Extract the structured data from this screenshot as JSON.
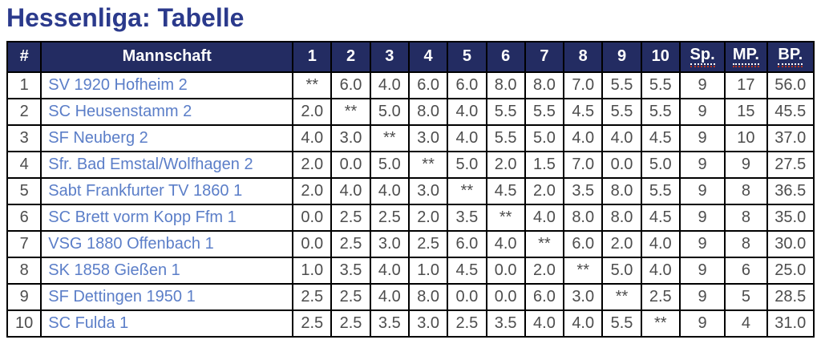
{
  "page": {
    "title": "Hessenliga: Tabelle"
  },
  "colors": {
    "title_text": "#2b3a8c",
    "header_background": "#232c62",
    "header_text": "#ffffff",
    "team_link": "#5b7ec8",
    "cell_text": "#4d4d4d",
    "table_border": "#000000",
    "header_separator_gray": "#bfbfbf",
    "abbr_dotted_white": "#ffffff",
    "abbr_dotted_red": "#b23320"
  },
  "table": {
    "rank_header": "#",
    "team_header": "Mannschaft",
    "round_headers": [
      "1",
      "2",
      "3",
      "4",
      "5",
      "6",
      "7",
      "8",
      "9",
      "10"
    ],
    "sp_header": "Sp.",
    "mp_header": "MP.",
    "bp_header": "BP.",
    "rows": [
      {
        "rank": "1",
        "team": "SV 1920 Hofheim 2",
        "results": [
          "**",
          "6.0",
          "4.0",
          "6.0",
          "6.0",
          "8.0",
          "8.0",
          "7.0",
          "5.5",
          "5.5"
        ],
        "sp": "9",
        "mp": "17",
        "bp": "56.0"
      },
      {
        "rank": "2",
        "team": "SC Heusenstamm 2",
        "results": [
          "2.0",
          "**",
          "5.0",
          "8.0",
          "4.0",
          "5.5",
          "5.5",
          "4.5",
          "5.5",
          "5.5"
        ],
        "sp": "9",
        "mp": "15",
        "bp": "45.5"
      },
      {
        "rank": "3",
        "team": "SF Neuberg 2",
        "results": [
          "4.0",
          "3.0",
          "**",
          "3.0",
          "4.0",
          "5.5",
          "5.0",
          "4.0",
          "4.0",
          "4.5"
        ],
        "sp": "9",
        "mp": "10",
        "bp": "37.0"
      },
      {
        "rank": "4",
        "team": "Sfr. Bad Emstal/Wolfhagen 2",
        "results": [
          "2.0",
          "0.0",
          "5.0",
          "**",
          "5.0",
          "2.0",
          "1.5",
          "7.0",
          "0.0",
          "5.0"
        ],
        "sp": "9",
        "mp": "9",
        "bp": "27.5"
      },
      {
        "rank": "5",
        "team": "Sabt Frankfurter TV 1860 1",
        "results": [
          "2.0",
          "4.0",
          "4.0",
          "3.0",
          "**",
          "4.5",
          "2.0",
          "3.5",
          "8.0",
          "5.5"
        ],
        "sp": "9",
        "mp": "8",
        "bp": "36.5"
      },
      {
        "rank": "6",
        "team": "SC Brett vorm Kopp Ffm 1",
        "results": [
          "0.0",
          "2.5",
          "2.5",
          "2.0",
          "3.5",
          "**",
          "4.0",
          "8.0",
          "8.0",
          "4.5"
        ],
        "sp": "9",
        "mp": "8",
        "bp": "35.0"
      },
      {
        "rank": "7",
        "team": "VSG 1880 Offenbach 1",
        "results": [
          "0.0",
          "2.5",
          "3.0",
          "2.5",
          "6.0",
          "4.0",
          "**",
          "6.0",
          "2.0",
          "4.0"
        ],
        "sp": "9",
        "mp": "8",
        "bp": "30.0"
      },
      {
        "rank": "8",
        "team": "SK 1858 Gießen 1",
        "results": [
          "1.0",
          "3.5",
          "4.0",
          "1.0",
          "4.5",
          "0.0",
          "2.0",
          "**",
          "5.0",
          "4.0"
        ],
        "sp": "9",
        "mp": "6",
        "bp": "25.0"
      },
      {
        "rank": "9",
        "team": "SF Dettingen 1950 1",
        "results": [
          "2.5",
          "2.5",
          "4.0",
          "8.0",
          "0.0",
          "0.0",
          "6.0",
          "3.0",
          "**",
          "2.5"
        ],
        "sp": "9",
        "mp": "5",
        "bp": "28.5"
      },
      {
        "rank": "10",
        "team": "SC Fulda 1",
        "results": [
          "2.5",
          "2.5",
          "3.5",
          "3.0",
          "2.5",
          "3.5",
          "4.0",
          "4.0",
          "5.5",
          "**"
        ],
        "sp": "9",
        "mp": "4",
        "bp": "31.0"
      }
    ]
  }
}
